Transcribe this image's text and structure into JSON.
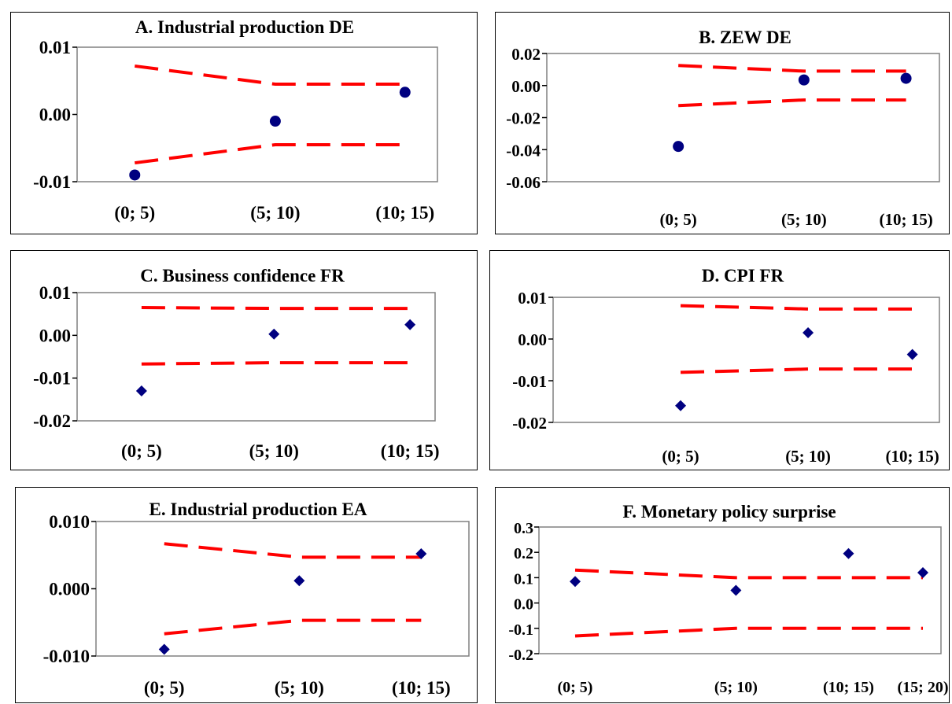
{
  "chart_data": [
    {
      "type": "scatter",
      "title": "A. Industrial production DE",
      "categories": [
        "(0; 5)",
        "(5; 10)",
        "(10; 15)"
      ],
      "values": [
        -0.009,
        -0.001,
        0.0033
      ],
      "upper_band": [
        0.0072,
        0.0045,
        0.0045
      ],
      "lower_band": [
        -0.0072,
        -0.0045,
        -0.0045
      ],
      "yticks": [
        "0.01",
        "0.00",
        "-0.01"
      ],
      "ytick_values": [
        0.01,
        0.0,
        -0.01
      ],
      "ylim": [
        -0.01,
        0.01
      ],
      "marker": "circle",
      "marker_color": "#000080",
      "band_color": "#ff0000"
    },
    {
      "type": "scatter",
      "title": "B. ZEW DE",
      "categories": [
        "(0; 5)",
        "(5; 10)",
        "(10; 15)"
      ],
      "values": [
        -0.038,
        0.0035,
        0.0045
      ],
      "upper_band": [
        0.0125,
        0.009,
        0.009
      ],
      "lower_band": [
        -0.0125,
        -0.009,
        -0.009
      ],
      "yticks": [
        "0.02",
        "0.00",
        "-0.02",
        "-0.04",
        "-0.06"
      ],
      "ytick_values": [
        0.02,
        0.0,
        -0.02,
        -0.04,
        -0.06
      ],
      "ylim": [
        -0.06,
        0.02
      ],
      "marker": "circle",
      "marker_color": "#000080",
      "band_color": "#ff0000"
    },
    {
      "type": "scatter",
      "title": "C. Business confidence FR",
      "categories": [
        "(0; 5)",
        "(5; 10)",
        "(10; 15)"
      ],
      "values": [
        -0.013,
        0.0003,
        0.0025
      ],
      "upper_band": [
        0.0065,
        0.0063,
        0.0063
      ],
      "lower_band": [
        -0.0067,
        -0.0064,
        -0.0064
      ],
      "yticks": [
        "0.01",
        "0.00",
        "-0.01",
        "-0.02"
      ],
      "ytick_values": [
        0.01,
        0.0,
        -0.01,
        -0.02
      ],
      "ylim": [
        -0.02,
        0.01
      ],
      "marker": "diamond",
      "marker_color": "#000080",
      "band_color": "#ff0000"
    },
    {
      "type": "scatter",
      "title": "D. CPI FR",
      "categories": [
        "(0; 5)",
        "(5; 10)",
        "(10; 15)"
      ],
      "values": [
        -0.016,
        0.0015,
        -0.0037
      ],
      "upper_band": [
        0.008,
        0.0072,
        0.0072
      ],
      "lower_band": [
        -0.008,
        -0.0072,
        -0.0072
      ],
      "yticks": [
        "0.01",
        "0.00",
        "-0.01",
        "-0.02"
      ],
      "ytick_values": [
        0.01,
        0.0,
        -0.01,
        -0.02
      ],
      "ylim": [
        -0.02,
        0.01
      ],
      "marker": "diamond",
      "marker_color": "#000080",
      "band_color": "#ff0000"
    },
    {
      "type": "scatter",
      "title": "E. Industrial production EA",
      "categories": [
        "(0; 5)",
        "(5; 10)",
        "(10; 15)"
      ],
      "values": [
        -0.009,
        0.0012,
        0.0052
      ],
      "upper_band": [
        0.0067,
        0.0047,
        0.0047
      ],
      "lower_band": [
        -0.0067,
        -0.0047,
        -0.0047
      ],
      "yticks": [
        "0.010",
        "0.000",
        "-0.010"
      ],
      "ytick_values": [
        0.01,
        0.0,
        -0.01
      ],
      "ylim": [
        -0.01,
        0.01
      ],
      "marker": "diamond",
      "marker_color": "#000080",
      "band_color": "#ff0000"
    },
    {
      "type": "scatter",
      "title": "F. Monetary policy surprise",
      "categories": [
        "(0; 5)",
        "(5; 10)",
        "(10; 15)",
        "(15; 20)"
      ],
      "values": [
        0.085,
        0.05,
        0.195,
        0.12
      ],
      "upper_band": [
        0.13,
        0.1,
        0.1,
        0.1
      ],
      "lower_band": [
        -0.13,
        -0.1,
        -0.1,
        -0.1
      ],
      "yticks": [
        "0.3",
        "0.2",
        "0.1",
        "0.0",
        "-0.1",
        "-0.2"
      ],
      "ytick_values": [
        0.3,
        0.2,
        0.1,
        0.0,
        -0.1,
        -0.2
      ],
      "ylim": [
        -0.2,
        0.3
      ],
      "marker": "diamond",
      "marker_color": "#000080",
      "band_color": "#ff0000"
    }
  ]
}
